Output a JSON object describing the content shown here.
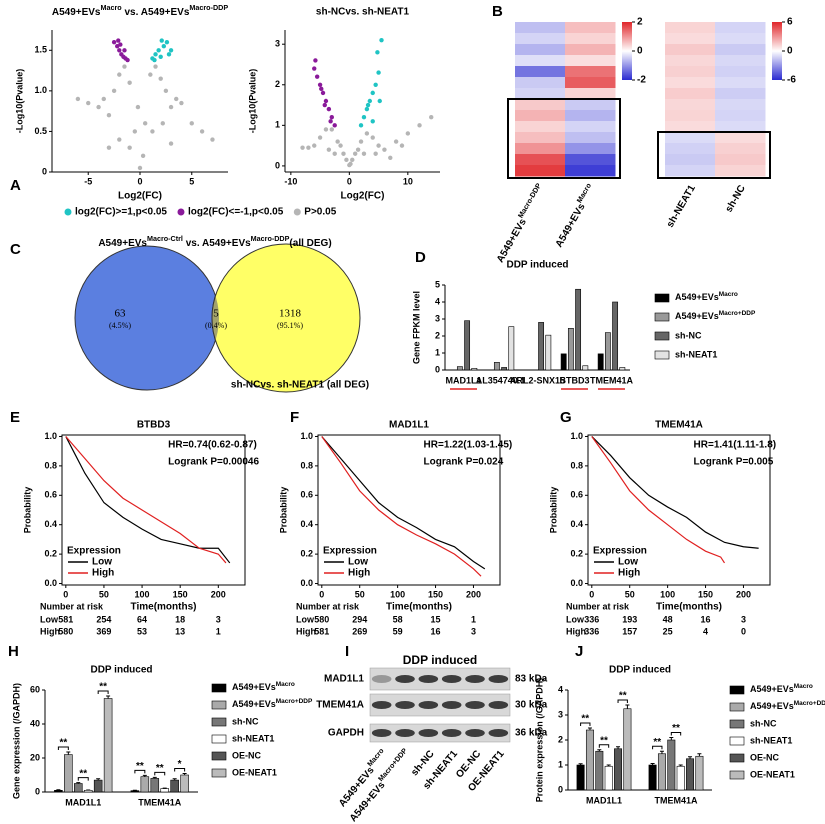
{
  "chart_data": [
    {
      "type": "scatter",
      "panel": "A",
      "title": [
        "A549+EVs",
        "Macro",
        " vs. A549+EVs",
        "Macro-DDP"
      ],
      "xlabel": "Log2(FC)",
      "ylabel": "-Log10(Pvalue)",
      "xlim": [
        -8.5,
        8.5
      ],
      "xticks": [
        -5,
        0,
        5
      ],
      "ylim": [
        0,
        1.75
      ],
      "yticks": [
        0,
        0.5,
        {
          "value": 1,
          "label": "1.0"
        },
        1.5
      ],
      "series": [
        {
          "name": "log2(FC)>=1,p<0.05",
          "color": "#1fc4c4",
          "x": [
            1.2,
            1.5,
            1.8,
            2,
            2.3,
            2.6,
            3,
            1.4,
            2.1,
            2.8
          ],
          "y": [
            1.4,
            1.45,
            1.5,
            1.42,
            1.55,
            1.6,
            1.5,
            1.38,
            1.62,
            1.45
          ]
        },
        {
          "name": "log2(FC)<=-1,p<0.05",
          "color": "#8a1a9a",
          "x": [
            -2.5,
            -2.2,
            -2,
            -1.8,
            -1.6,
            -1.4,
            -1.2,
            -1.9,
            -1.5,
            -2.1
          ],
          "y": [
            1.6,
            1.55,
            1.5,
            1.45,
            1.42,
            1.4,
            1.38,
            1.57,
            1.5,
            1.62
          ]
        },
        {
          "name": "P>0.05",
          "color": "#b5b5b5",
          "x": [
            -6,
            -5,
            -4,
            -3.5,
            -3,
            -2.5,
            -2,
            -1.5,
            -1,
            -0.5,
            0,
            0.5,
            1,
            1.5,
            2,
            2.5,
            3,
            3.5,
            4,
            5,
            6,
            7,
            -2,
            -1,
            0.3,
            1.2,
            2.2,
            -3,
            3,
            -0.2
          ],
          "y": [
            0.9,
            0.85,
            0.8,
            0.9,
            0.7,
            1.0,
            1.2,
            1.3,
            1.1,
            0.5,
            0.05,
            0.6,
            1.2,
            1.3,
            1.15,
            1.0,
            0.8,
            0.9,
            0.85,
            0.6,
            0.5,
            0.4,
            0.4,
            0.3,
            0.2,
            0.5,
            0.6,
            0.3,
            0.35,
            0.8
          ]
        }
      ]
    },
    {
      "type": "scatter",
      "title": "sh-NCvs. sh-NEAT1",
      "xlabel": "Log2(FC)",
      "ylabel": "-Log10(Pvalue)",
      "xlim": [
        -11,
        15.5
      ],
      "xticks": [
        -10,
        0,
        10
      ],
      "ylim": [
        -0.15,
        3.35
      ],
      "yticks": [
        0,
        1,
        2,
        3
      ],
      "series": [
        {
          "color": "#1fc4c4",
          "x": [
            2,
            2.5,
            3,
            3.5,
            4,
            4.5,
            5,
            3.2,
            4.8,
            5.5,
            5.2,
            4
          ],
          "y": [
            1.0,
            1.2,
            1.4,
            1.6,
            1.8,
            2.0,
            2.3,
            1.5,
            2.8,
            3.1,
            1.6,
            1.1
          ]
        },
        {
          "color": "#8a1a9a",
          "x": [
            -6,
            -5.5,
            -5,
            -4.5,
            -4,
            -3.5,
            -3,
            -2.5,
            -5.8,
            -4.8,
            -4.2,
            -3.2
          ],
          "y": [
            2.4,
            2.2,
            2.0,
            1.8,
            1.6,
            1.4,
            1.2,
            1.0,
            2.6,
            1.9,
            1.5,
            1.1
          ]
        },
        {
          "color": "#b5b5b5",
          "x": [
            -8,
            -6,
            -5,
            -4,
            -3,
            -2,
            -1,
            -0.5,
            0,
            0.5,
            1,
            2,
            3,
            4,
            5,
            6,
            8,
            10,
            12,
            14,
            -3.5,
            -2.5,
            1.5,
            2.5,
            7,
            -7,
            4.5,
            9,
            -1.5,
            0.2
          ],
          "y": [
            0.45,
            0.5,
            0.7,
            0.9,
            0.9,
            0.6,
            0.3,
            0.15,
            0.02,
            0.15,
            0.3,
            0.6,
            0.8,
            0.7,
            0.5,
            0.4,
            0.6,
            0.8,
            1.0,
            1.2,
            0.4,
            0.3,
            0.4,
            0.3,
            0.2,
            0.45,
            0.3,
            0.5,
            0.5,
            0.05
          ]
        }
      ]
    },
    {
      "type": "heatmap",
      "panel": "B",
      "columns": [
        [
          "A549+EVs",
          "Macro-DDP"
        ],
        [
          "A549+EVs",
          "Macro"
        ]
      ],
      "clim": [
        -2,
        2
      ],
      "colorbar_ticks": [
        2,
        0,
        -2
      ],
      "values": [
        [
          -0.6,
          0.6
        ],
        [
          -0.4,
          0.4
        ],
        [
          -0.7,
          0.7
        ],
        [
          -0.3,
          0.3
        ],
        [
          -1.3,
          1.3
        ],
        [
          -0.5,
          1.5
        ],
        [
          -0.4,
          0.4
        ],
        [
          0.5,
          -0.5
        ],
        [
          0.7,
          -0.7
        ],
        [
          0.4,
          -0.4
        ],
        [
          0.6,
          -0.6
        ],
        [
          1.0,
          -1.0
        ],
        [
          1.6,
          -1.6
        ],
        [
          1.8,
          -1.8
        ]
      ]
    },
    {
      "type": "heatmap",
      "columns": [
        "sh-NEAT1",
        "sh-NC"
      ],
      "clim": [
        -6,
        6
      ],
      "colorbar_ticks": [
        6,
        0,
        -6
      ],
      "values": [
        [
          1.2,
          -1.2
        ],
        [
          1.0,
          -1.0
        ],
        [
          1.5,
          -1.5
        ],
        [
          1.1,
          -1.1
        ],
        [
          1.3,
          -1.3
        ],
        [
          1.0,
          -1.0
        ],
        [
          1.4,
          -1.4
        ],
        [
          1.1,
          -1.1
        ],
        [
          1.2,
          -1.2
        ],
        [
          1.0,
          -1.0
        ],
        [
          -1.0,
          1.0
        ],
        [
          -1.3,
          1.3
        ],
        [
          -1.5,
          1.5
        ],
        [
          -1.2,
          1.2
        ]
      ]
    },
    {
      "type": "venn",
      "panel": "C",
      "title": [
        "A549+EVs",
        "Macro-Ctrl",
        " vs. A549+EVs",
        "Macro-DDP",
        "(all DEG)"
      ],
      "subtitle": "sh-NCvs. sh-NEAT1 (all DEG)",
      "values": [
        63,
        5,
        1318
      ],
      "shares": [
        4.5,
        0.4,
        95.1
      ],
      "share_labels": [
        "(4.5%)",
        "(0.4%)",
        "(95.1%)"
      ]
    },
    {
      "type": "bar",
      "panel": "D",
      "title": "DDP induced",
      "ylabel": "Gene FPKM level",
      "categories": [
        "MAD1L1",
        "AL354740.1",
        "ARL2-SNX15",
        "BTBD3",
        "TMEM41A"
      ],
      "ylim": [
        0,
        5
      ],
      "yticks": [
        0,
        1,
        2,
        3,
        4,
        5
      ],
      "series": [
        {
          "name": [
            "A549+EVs",
            "Macro"
          ],
          "color": "#000000",
          "values": [
            0,
            0,
            0,
            0.95,
            0.95
          ]
        },
        {
          "name": [
            "A549+EVs",
            "Macro+DDP"
          ],
          "color": "#999999",
          "values": [
            0.2,
            0.45,
            0,
            2.45,
            2.2
          ]
        },
        {
          "name": "sh-NC",
          "color": "#666666",
          "values": [
            2.9,
            0.15,
            2.8,
            4.75,
            4.0
          ]
        },
        {
          "name": "sh-NEAT1",
          "color": "#e2e2e2",
          "values": [
            0.1,
            2.55,
            2.05,
            0.25,
            0.15
          ]
        }
      ]
    },
    {
      "type": "line",
      "panel": "E",
      "title": "BTBD3",
      "annotations": [
        "HR=0.74(0.62-0.87)",
        "Logrank P=0.00046"
      ],
      "xlabel": "Time(months)",
      "ylabel": "Probability",
      "xlim": [
        -5,
        235
      ],
      "xticks": [
        0,
        50,
        100,
        150,
        200
      ],
      "ylim": [
        -0.01,
        1.01
      ],
      "yticks": [
        {
          "value": 0,
          "label": "0.0"
        },
        0.2,
        0.4,
        0.6,
        0.8,
        {
          "value": 1,
          "label": "1.0"
        }
      ],
      "legend_title": "Expression",
      "risk_title": "Number at risk",
      "series": [
        {
          "name": "Low",
          "color": "#000000",
          "x": [
            0,
            10,
            25,
            50,
            75,
            100,
            125,
            150,
            175,
            200,
            215
          ],
          "y": [
            1,
            0.9,
            0.75,
            0.55,
            0.45,
            0.37,
            0.3,
            0.27,
            0.24,
            0.24,
            0.14
          ],
          "at_risk": [
            581,
            254,
            64,
            18,
            3
          ]
        },
        {
          "name": "High",
          "color": "#e02020",
          "x": [
            0,
            25,
            50,
            75,
            100,
            125,
            150,
            175,
            200,
            210
          ],
          "y": [
            1,
            0.85,
            0.7,
            0.58,
            0.5,
            0.42,
            0.34,
            0.24,
            0.2,
            0.14
          ],
          "at_risk": [
            580,
            369,
            53,
            13,
            1
          ]
        }
      ]
    },
    {
      "type": "line",
      "panel": "F",
      "title": "MAD1L1",
      "annotations": [
        "HR=1.22(1.03-1.45)",
        "Logrank P=0.024"
      ],
      "xlabel": "Time(months)",
      "ylabel": "Probability",
      "xlim": [
        -5,
        235
      ],
      "xticks": [
        0,
        50,
        100,
        150,
        200
      ],
      "ylim": [
        -0.01,
        1.01
      ],
      "yticks": [
        {
          "value": 0,
          "label": "0.0"
        },
        0.2,
        0.4,
        0.6,
        0.8,
        {
          "value": 1,
          "label": "1.0"
        }
      ],
      "legend_title": "Expression",
      "risk_title": "Number at risk",
      "series": [
        {
          "name": "Low",
          "color": "#000000",
          "x": [
            0,
            25,
            50,
            75,
            100,
            125,
            150,
            175,
            200,
            215
          ],
          "y": [
            1,
            0.85,
            0.7,
            0.55,
            0.45,
            0.38,
            0.3,
            0.25,
            0.15,
            0.1
          ],
          "at_risk": [
            580,
            294,
            58,
            15,
            1
          ]
        },
        {
          "name": "High",
          "color": "#e02020",
          "x": [
            0,
            25,
            50,
            75,
            100,
            125,
            150,
            175,
            200,
            210
          ],
          "y": [
            1,
            0.82,
            0.63,
            0.5,
            0.4,
            0.33,
            0.27,
            0.2,
            0.1,
            0.05
          ],
          "at_risk": [
            581,
            269,
            59,
            16,
            3
          ]
        }
      ]
    },
    {
      "type": "line",
      "panel": "G",
      "title": "TMEM41A",
      "annotations": [
        "HR=1.41(1.11-1.8)",
        "Logrank P=0.005"
      ],
      "xlabel": "Time(months)",
      "ylabel": "Probability",
      "xlim": [
        -5,
        235
      ],
      "xticks": [
        0,
        50,
        100,
        150,
        200
      ],
      "ylim": [
        -0.01,
        1.01
      ],
      "yticks": [
        {
          "value": 0,
          "label": "0.0"
        },
        0.2,
        0.4,
        0.6,
        0.8,
        {
          "value": 1,
          "label": "1.0"
        }
      ],
      "legend_title": "Expression",
      "risk_title": "Number at risk",
      "series": [
        {
          "name": "Low",
          "color": "#000000",
          "x": [
            0,
            25,
            50,
            75,
            100,
            125,
            150,
            175,
            200,
            220
          ],
          "y": [
            1,
            0.87,
            0.72,
            0.6,
            0.52,
            0.45,
            0.35,
            0.28,
            0.25,
            0.24
          ],
          "at_risk": [
            336,
            193,
            48,
            16,
            3
          ]
        },
        {
          "name": "High",
          "color": "#e02020",
          "x": [
            0,
            25,
            50,
            75,
            100,
            125,
            150,
            170,
            175
          ],
          "y": [
            1,
            0.82,
            0.63,
            0.5,
            0.4,
            0.3,
            0.22,
            0.18,
            0.14
          ],
          "at_risk": [
            336,
            157,
            25,
            4,
            0
          ]
        }
      ]
    },
    {
      "type": "bar",
      "panel": "H",
      "title": "DDP induced",
      "ylabel": "Gene expression (/GAPDH)",
      "categories": [
        "MAD1L1",
        "TMEM41A"
      ],
      "ylim": [
        0,
        60
      ],
      "yticks": [
        0,
        20,
        40,
        60
      ],
      "significance": [
        [
          "**",
          "**",
          "**"
        ],
        [
          "**",
          "**",
          "*"
        ]
      ],
      "series": [
        {
          "name": [
            "A549+EVs",
            "Macro"
          ],
          "color": "#000000",
          "values": [
            1,
            0.8
          ],
          "errors": [
            0.3,
            0.2
          ]
        },
        {
          "name": [
            "A549+EVs",
            "Macro+DDP"
          ],
          "color": "#aaaaaa",
          "values": [
            22,
            9
          ],
          "errors": [
            1.5,
            0.8
          ]
        },
        {
          "name": "sh-NC",
          "color": "#777777",
          "values": [
            5,
            8
          ],
          "errors": [
            0.5,
            0.6
          ]
        },
        {
          "name": "sh-NEAT1",
          "color": "#ffffff",
          "values": [
            1,
            2
          ],
          "errors": [
            0.2,
            0.3
          ]
        },
        {
          "name": "OE-NC",
          "color": "#555555",
          "values": [
            7,
            7
          ],
          "errors": [
            0.8,
            0.8
          ]
        },
        {
          "name": "OE-NEAT1",
          "color": "#bbbbbb",
          "values": [
            55,
            10
          ],
          "errors": [
            1.5,
            0.9
          ]
        }
      ]
    },
    {
      "type": "blot",
      "panel": "I",
      "title": "DDP induced",
      "rows": [
        "MAD1L1",
        "TMEM41A",
        "GAPDH"
      ],
      "sizes": [
        "83 kDa",
        "30 kDa",
        "36 kDa"
      ],
      "lanes": [
        [
          "A549+EVs",
          "Macro"
        ],
        [
          "A549+EVs",
          "Macro+DDP"
        ],
        "sh-NC",
        "sh-NEAT1",
        "OE-NC",
        "OE-NEAT1"
      ]
    },
    {
      "type": "bar",
      "panel": "J",
      "title": "DDP induced",
      "ylabel": "Protein expression (/GAPDH)",
      "categories": [
        "MAD1L1",
        "TMEM41A"
      ],
      "ylim": [
        0,
        4
      ],
      "yticks": [
        0,
        1,
        2,
        3,
        4
      ],
      "significance": [
        [
          "**",
          "**",
          "**"
        ],
        [
          "**",
          "**",
          null
        ]
      ],
      "series": [
        {
          "name": [
            "A549+EVs",
            "Macro"
          ],
          "color": "#000000",
          "values": [
            1,
            1
          ],
          "errors": [
            0.05,
            0.06
          ]
        },
        {
          "name": [
            "A549+EVs",
            "Macro+DDP"
          ],
          "color": "#aaaaaa",
          "values": [
            2.4,
            1.45
          ],
          "errors": [
            0.08,
            0.1
          ]
        },
        {
          "name": "sh-NC",
          "color": "#777777",
          "values": [
            1.55,
            2.0
          ],
          "errors": [
            0.06,
            0.1
          ]
        },
        {
          "name": "sh-NEAT1",
          "color": "#ffffff",
          "values": [
            0.95,
            0.95
          ],
          "errors": [
            0.05,
            0.05
          ]
        },
        {
          "name": "OE-NC",
          "color": "#555555",
          "values": [
            1.65,
            1.25
          ],
          "errors": [
            0.08,
            0.08
          ]
        },
        {
          "name": "OE-NEAT1",
          "color": "#bbbbbb",
          "values": [
            3.25,
            1.35
          ],
          "errors": [
            0.15,
            0.1
          ]
        }
      ]
    }
  ]
}
